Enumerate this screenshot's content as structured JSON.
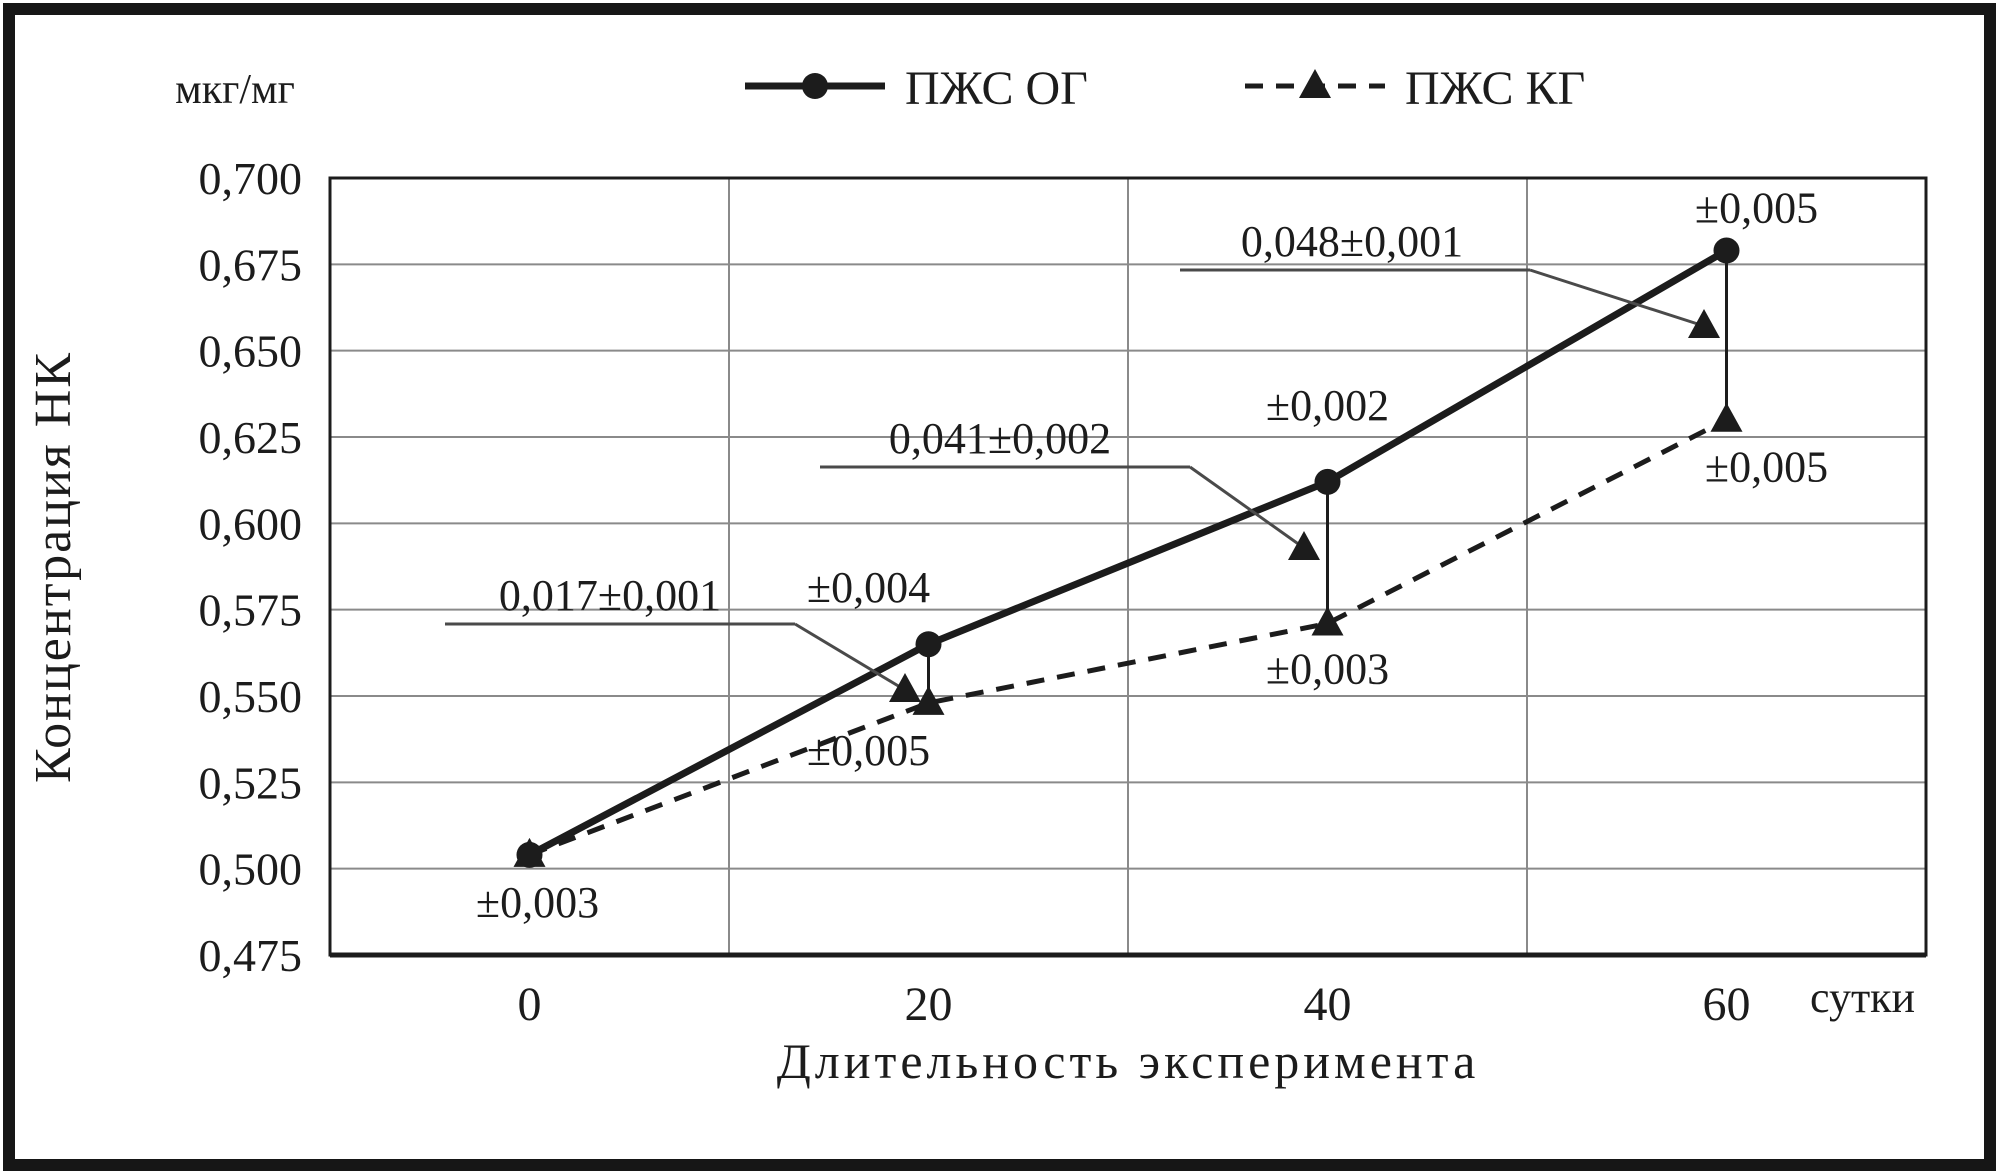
{
  "figure": {
    "background": "#ffffff",
    "frame_color": "#161616"
  },
  "chart_data": {
    "type": "line",
    "title": "",
    "unit_label": "мкг/мг",
    "ylabel": "Концентрация НК",
    "xlabel": "Длительность эксперимента",
    "x_axis_unit": "сутки",
    "categories": [
      "0",
      "20",
      "40",
      "60"
    ],
    "x_values_days": [
      0,
      20,
      40,
      60
    ],
    "ylim": [
      0.475,
      0.7
    ],
    "ytick_step": 0.025,
    "ytick_labels": [
      "0,475",
      "0,500",
      "0,525",
      "0,550",
      "0,575",
      "0,600",
      "0,625",
      "0,650",
      "0,675",
      "0,700"
    ],
    "grid": true,
    "legend_position": "top-center",
    "series": [
      {
        "name": "ПЖС ОГ",
        "line_style": "solid",
        "marker": "circle",
        "values": [
          0.504,
          0.565,
          0.612,
          0.679
        ],
        "point_error_labels": [
          "±0,003",
          "±0,004",
          "±0,002",
          "±0,005"
        ]
      },
      {
        "name": "ПЖС КГ",
        "line_style": "dashed",
        "marker": "triangle",
        "values": [
          0.504,
          0.548,
          0.571,
          0.63
        ],
        "point_error_labels": [
          "",
          "±0,005",
          "±0,003",
          "±0,005"
        ]
      }
    ],
    "difference_annotations": [
      {
        "label": "0,017±0,001",
        "category_index": 1
      },
      {
        "label": "0,041±0,002",
        "category_index": 2
      },
      {
        "label": "0,048±0,001",
        "category_index": 3
      }
    ],
    "colors": {
      "ink": "#1c1c1c",
      "grid": "#8a8a8a",
      "annotation": "#4a4a4a",
      "background": "#ffffff"
    }
  }
}
